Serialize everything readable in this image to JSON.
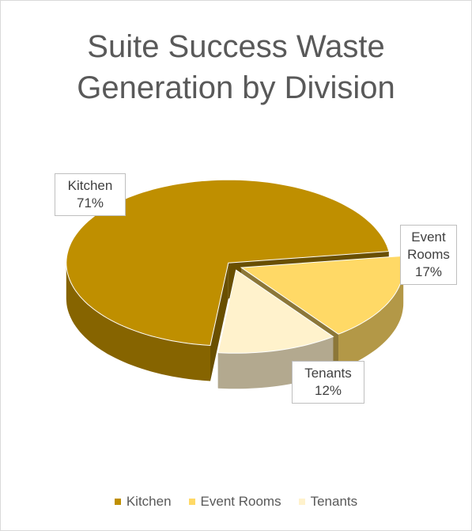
{
  "chart_data": {
    "type": "pie3d",
    "title": "Suite Success Waste Generation by Division",
    "categories": [
      "Kitchen",
      "Event Rooms",
      "Tenants"
    ],
    "values": [
      71,
      17,
      12
    ],
    "value_labels": [
      "71%",
      "17%",
      "12%"
    ],
    "colors": [
      "#bf8f00",
      "#ffd966",
      "#fff2cc"
    ],
    "legend": "bottom"
  }
}
